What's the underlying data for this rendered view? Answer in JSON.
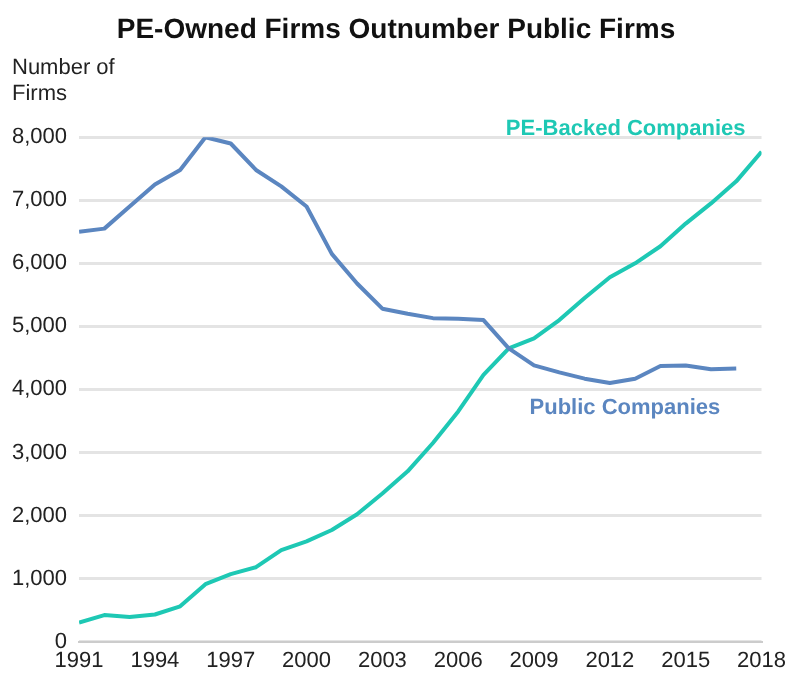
{
  "chart_data": {
    "type": "line",
    "title": "PE-Owned Firms Outnumber Public Firms",
    "ylabel": "Number of Firms",
    "xlim": [
      1991,
      2018
    ],
    "xticks": [
      1991,
      1994,
      1997,
      2000,
      2003,
      2006,
      2009,
      2012,
      2015,
      2018
    ],
    "ylim": [
      0,
      8000
    ],
    "yticks": [
      {
        "value": 0,
        "label": "0"
      },
      {
        "value": 1000,
        "label": "1,000"
      },
      {
        "value": 2000,
        "label": "2,000"
      },
      {
        "value": 3000,
        "label": "3,000"
      },
      {
        "value": 4000,
        "label": "4,000"
      },
      {
        "value": 5000,
        "label": "5,000"
      },
      {
        "value": 6000,
        "label": "6,000"
      },
      {
        "value": 7000,
        "label": "7,000"
      },
      {
        "value": 8000,
        "label": "8,000"
      }
    ],
    "grid": "y",
    "legend": false,
    "marker": "none",
    "line_style": "solid",
    "series": [
      {
        "name": "Public Companies",
        "color": "#5b86c0",
        "x": [
          1991,
          1992,
          1993,
          1994,
          1995,
          1996,
          1997,
          1998,
          1999,
          2000,
          2001,
          2002,
          2003,
          2004,
          2005,
          2006,
          2007,
          2008,
          2009,
          2010,
          2011,
          2012,
          2013,
          2014,
          2015,
          2016,
          2017
        ],
        "values": [
          6500,
          6550,
          6900,
          7250,
          7480,
          8000,
          7900,
          7480,
          7220,
          6900,
          6150,
          5680,
          5280,
          5200,
          5130,
          5120,
          5100,
          4650,
          4380,
          4270,
          4170,
          4100,
          4170,
          4370,
          4380,
          4320,
          4330
        ]
      },
      {
        "name": "PE-Backed Companies",
        "color": "#1ec8b4",
        "x": [
          1991,
          1992,
          1993,
          1994,
          1995,
          1996,
          1997,
          1998,
          1999,
          2000,
          2001,
          2002,
          2003,
          2004,
          2005,
          2006,
          2007,
          2008,
          2009,
          2010,
          2011,
          2012,
          2013,
          2014,
          2015,
          2016,
          2017,
          2018
        ],
        "values": [
          300,
          420,
          390,
          430,
          560,
          910,
          1070,
          1180,
          1450,
          1590,
          1770,
          2020,
          2350,
          2700,
          3150,
          3650,
          4230,
          4650,
          4810,
          5100,
          5450,
          5780,
          6000,
          6270,
          6630,
          6950,
          7300,
          7770
        ]
      }
    ]
  }
}
